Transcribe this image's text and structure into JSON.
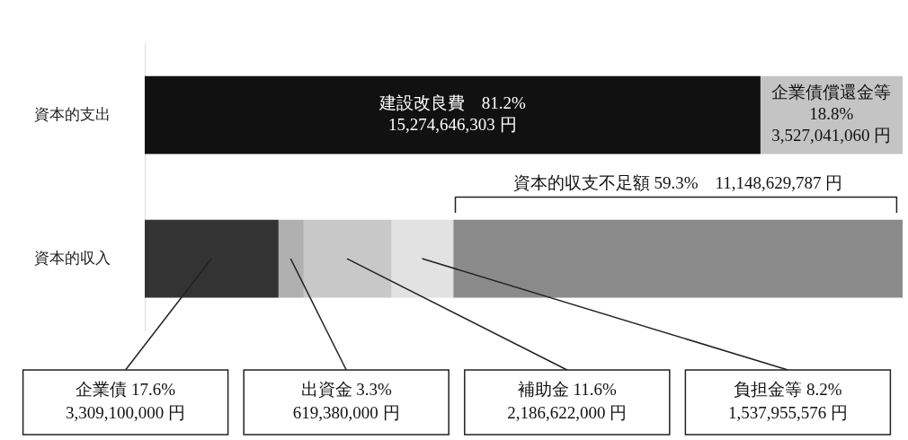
{
  "chart_data": {
    "type": "bar",
    "orientation": "horizontal",
    "stacked": true,
    "categories": [
      "資本的支出",
      "資本的収入"
    ],
    "series": [
      {
        "color": "#111111",
        "values": [
          81.2,
          null
        ],
        "value_labels": [
          "建設改良費　81.2%\n15,274,646,303 円",
          null
        ]
      },
      {
        "color": "#c4c4c4",
        "values": [
          18.8,
          null
        ],
        "value_labels": [
          "企業債償還金等\n18.8%\n3,527,041,060 円",
          null
        ]
      },
      {
        "color": "#333333",
        "values": [
          null,
          17.6
        ],
        "value_labels": [
          null,
          "企業債 17.6%\n3,309,100,000 円"
        ]
      },
      {
        "color": "#b0b0b0",
        "values": [
          null,
          3.3
        ],
        "value_labels": [
          null,
          "出資金 3.3%\n619,380,000 円"
        ]
      },
      {
        "color": "#c8c8c8",
        "values": [
          null,
          11.6
        ],
        "value_labels": [
          null,
          "補助金 11.6%\n2,186,622,000 円"
        ]
      },
      {
        "color": "#e2e2e2",
        "values": [
          null,
          8.2
        ],
        "value_labels": [
          null,
          "負担金等 8.2%\n1,537,955,576 円"
        ]
      },
      {
        "color": "#8a8a8a",
        "values": [
          null,
          59.3
        ]
      }
    ],
    "annotations": [
      "資本的収支不足額 59.3%　11,148,629,787 円"
    ],
    "legend": false,
    "grid": false,
    "tick_labels": "y"
  }
}
